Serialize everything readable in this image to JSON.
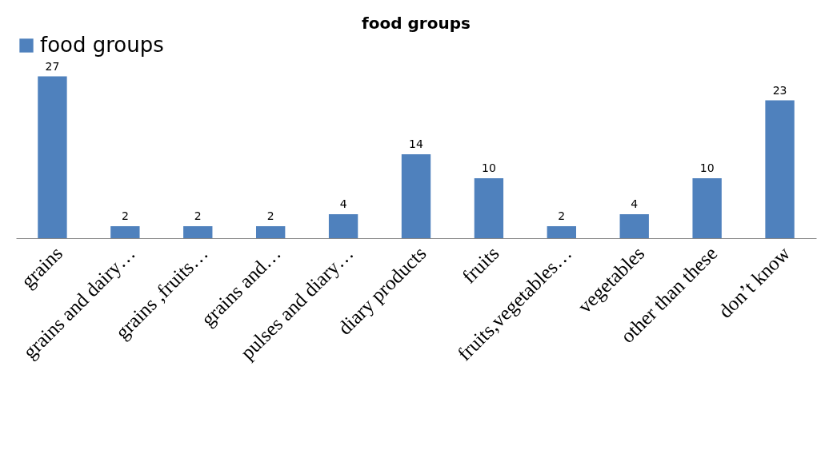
{
  "chart_data": {
    "type": "bar",
    "title": "food groups",
    "categories": [
      "grains",
      "grains and dairy…",
      "grains ,fruits…",
      "grains and…",
      "pulses and diary…",
      "diary products",
      "fruits",
      "fruits,vegetables…",
      "vegetables",
      "other than these",
      "don’t know"
    ],
    "series": [
      {
        "name": "food groups",
        "color": "#4f81bd",
        "values": [
          27,
          2,
          2,
          2,
          4,
          14,
          10,
          2,
          4,
          10,
          23
        ]
      }
    ],
    "data_labels": true,
    "legend": "top",
    "grid": false
  }
}
